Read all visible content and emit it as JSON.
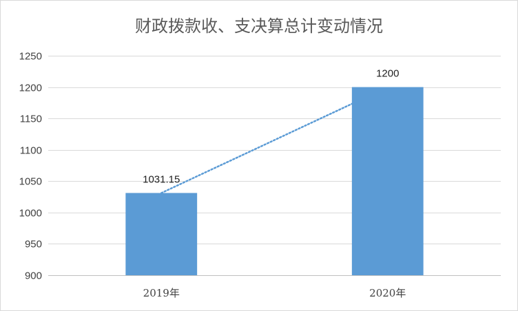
{
  "chart_data": {
    "type": "bar",
    "title": "财政拨款收、支决算总计变动情况",
    "categories": [
      "2019年",
      "2020年"
    ],
    "values": [
      1031.15,
      1200
    ],
    "data_labels": [
      "1031.15",
      "1200"
    ],
    "y_ticks": [
      "900",
      "950",
      "1000",
      "1050",
      "1100",
      "1150",
      "1200",
      "1250"
    ],
    "ylim": [
      900,
      1250
    ],
    "grid": true,
    "legend": false,
    "trendline": "linear",
    "colors": {
      "bar": "#5b9bd5",
      "trendline": "#5b9bd5"
    }
  }
}
